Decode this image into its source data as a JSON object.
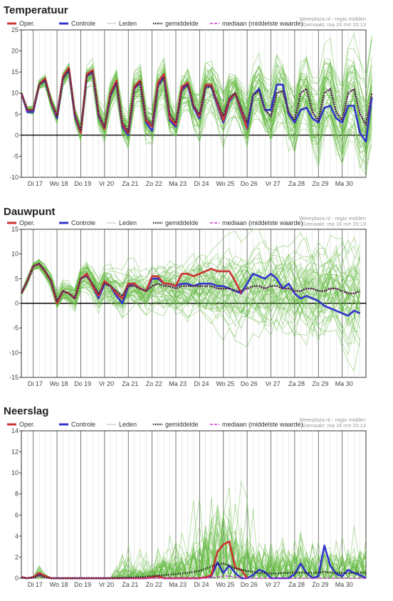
{
  "credit_line1": "Weerplaza.nl - regio midden",
  "credit_line2": "Gemaakt: ma 16 mrt 20:13",
  "legend": {
    "oper": "Oper.",
    "controle": "Controle",
    "leden": "Leden",
    "gemiddelde": "gemiddelde",
    "mediaan": "mediaan (middelste waarde)"
  },
  "colors": {
    "oper": "#cc3333",
    "controle": "#3333cc",
    "leden": "#66bb44",
    "gemiddelde": "#222222",
    "mediaan": "#cc33cc"
  },
  "days": [
    "Di 17",
    "Wo 18",
    "Do 19",
    "Vr 20",
    "Za 21",
    "Zo 22",
    "Ma 23",
    "Di 24",
    "Wo 25",
    "Do 26",
    "Vr 27",
    "Za 28",
    "Zo 29",
    "Ma 30"
  ],
  "chart_data": [
    {
      "type": "line",
      "title": "Temperatuur",
      "ylim": [
        -10,
        25
      ],
      "yticks": [
        -10,
        -5,
        0,
        5,
        10,
        15,
        20,
        25
      ],
      "x_steps": 58,
      "series": [
        {
          "name": "Oper.",
          "values": [
            10,
            6,
            6,
            12,
            13.5,
            8,
            4.5,
            14,
            16,
            5,
            0.5,
            14.5,
            15.5,
            5,
            1.5,
            10,
            13,
            2.5,
            0.5,
            11.5,
            13,
            3.5,
            2,
            12.5,
            14.5,
            4,
            2.5,
            11.5,
            12.5,
            7,
            4.5,
            12,
            12,
            7.5,
            3.5,
            8.5,
            10,
            6,
            1.5
          ]
        },
        {
          "name": "Controle",
          "values": [
            10,
            5.5,
            5.5,
            12,
            13,
            8,
            4,
            13.5,
            15.5,
            4.5,
            0.5,
            14,
            15,
            4.5,
            1.5,
            9.5,
            12.5,
            2,
            0,
            11,
            12.5,
            3,
            1,
            12,
            14,
            3.5,
            2,
            11,
            12,
            6.5,
            4,
            11.5,
            11.5,
            7,
            3,
            8,
            10,
            5.5,
            1.5,
            9.5,
            11,
            6,
            6,
            12,
            12,
            5,
            3,
            6,
            6.5,
            4,
            3,
            6.5,
            7,
            4,
            3,
            7,
            7,
            0.5,
            -1.5,
            9
          ]
        },
        {
          "name": "gemiddelde",
          "values": [
            10,
            6,
            6,
            12,
            13,
            8,
            4.5,
            13.5,
            15.5,
            5,
            1,
            14,
            15,
            5,
            2,
            9.5,
            12.5,
            3,
            1,
            11,
            12.5,
            4,
            2.5,
            11.5,
            13.5,
            5,
            3,
            10.5,
            12,
            7,
            5,
            11.5,
            11.5,
            8,
            4.5,
            9,
            10,
            6.5,
            3,
            9.5,
            10.5,
            6,
            4.5,
            10,
            10.5,
            5.5,
            3.5,
            10,
            11,
            5.5,
            3.5,
            10,
            11,
            5.5,
            3.5,
            10,
            11,
            5,
            2.5,
            10
          ]
        },
        {
          "name": "mediaan (middelste waarde)",
          "values": [
            10,
            6,
            6,
            12,
            13,
            8,
            4.5,
            13.5,
            15.5,
            5,
            1,
            14,
            15,
            5,
            2,
            9.5,
            12.5,
            3,
            1,
            11,
            12.5,
            4,
            2.5,
            11.5,
            13.5,
            5,
            3,
            10.5,
            12,
            7,
            5,
            11.5,
            11.5,
            8,
            4.5,
            9,
            10,
            6.5,
            3,
            9.5,
            10.5,
            6,
            4.5,
            10,
            10.5,
            5.5,
            3.5,
            10,
            11,
            5.5,
            3.5,
            10,
            11,
            5.5,
            3.5,
            10,
            11,
            5,
            2.5,
            10
          ]
        }
      ]
    },
    {
      "type": "line",
      "title": "Dauwpunt",
      "ylim": [
        -15,
        15
      ],
      "yticks": [
        -15,
        -10,
        -5,
        0,
        5,
        10,
        15
      ],
      "x_steps": 58,
      "series": [
        {
          "name": "Oper.",
          "values": [
            2,
            4.5,
            7.5,
            8,
            6.5,
            4.5,
            0,
            2.5,
            2,
            1,
            5,
            6,
            3.5,
            1.5,
            4.5,
            3.5,
            2,
            1,
            4,
            4,
            3,
            2.5,
            5.5,
            5.5,
            4,
            4,
            3.5,
            6,
            6,
            5.5,
            6,
            6.5,
            7,
            6.5,
            6.5,
            6.5,
            4.5,
            2
          ]
        },
        {
          "name": "Controle",
          "values": [
            2,
            4.5,
            7.5,
            8,
            6.5,
            4.5,
            0,
            2.5,
            2,
            1,
            5,
            6,
            3.5,
            1,
            4,
            3.5,
            1.5,
            0,
            3.5,
            4,
            3,
            2.5,
            5,
            5,
            4,
            4,
            3.5,
            4,
            4,
            3.5,
            4,
            4,
            4,
            3.5,
            3.5,
            3,
            2.5,
            2,
            4,
            6,
            5.5,
            5,
            6,
            5,
            3,
            4,
            2,
            1,
            1.5,
            1,
            0.5,
            -0.5,
            -1,
            -1.5,
            -2,
            -2.5,
            -1.5,
            -2
          ]
        },
        {
          "name": "gemiddelde",
          "values": [
            2,
            4.5,
            7.5,
            8,
            6.5,
            4.5,
            0.5,
            2.5,
            2,
            1,
            5,
            5.5,
            4,
            2,
            4,
            3.5,
            2.5,
            1.5,
            3.5,
            3.5,
            3,
            2.5,
            3.5,
            4,
            3.5,
            3.5,
            3,
            3.5,
            3.5,
            3.5,
            3.5,
            3.5,
            3.5,
            3,
            3,
            3,
            2.5,
            2.5,
            3,
            3.5,
            3.5,
            3,
            3.5,
            3.5,
            3,
            3,
            2.5,
            2.5,
            3,
            3,
            2.5,
            2.5,
            3,
            3,
            2.5,
            2,
            2,
            2.5
          ]
        },
        {
          "name": "mediaan (middelste waarde)",
          "values": [
            2,
            4.5,
            7.5,
            8,
            6.5,
            4.5,
            0.5,
            2.5,
            2,
            1,
            5,
            5.5,
            4,
            2,
            4,
            3.5,
            2.5,
            1.5,
            3.5,
            3.5,
            3,
            2.5,
            3.5,
            4,
            3.5,
            3.5,
            3,
            3.5,
            3.5,
            3.5,
            3.5,
            3.5,
            3.5,
            3,
            3,
            3,
            2.5,
            2.5,
            3,
            3.5,
            3.5,
            3,
            3.5,
            3.5,
            3,
            3,
            2.5,
            2.5,
            3,
            3,
            2.5,
            2.5,
            3,
            3,
            2.5,
            2,
            2,
            2.5
          ]
        }
      ]
    },
    {
      "type": "line",
      "title": "Neerslag",
      "ylim": [
        0,
        14
      ],
      "yticks": [
        0,
        2,
        4,
        6,
        8,
        10,
        12,
        14
      ],
      "x_steps": 58,
      "series": [
        {
          "name": "Oper.",
          "values": [
            0.1,
            0,
            0.1,
            0.5,
            0.2,
            0,
            0,
            0,
            0,
            0,
            0,
            0,
            0,
            0,
            0,
            0,
            0,
            0,
            0,
            0,
            0,
            0,
            0.1,
            0.2,
            0,
            0,
            0,
            0,
            0,
            0,
            0,
            0.1,
            0.3,
            2.5,
            3.2,
            3.5,
            1,
            0.8,
            0
          ]
        },
        {
          "name": "Controle",
          "values": [
            0.1,
            0,
            0.1,
            0.4,
            0.2,
            0,
            0,
            0,
            0,
            0,
            0,
            0,
            0,
            0,
            0,
            0,
            0,
            0,
            0,
            0,
            0,
            0,
            0.1,
            0.2,
            0,
            0,
            0,
            0,
            0,
            0,
            0,
            0.1,
            0.2,
            1.5,
            0.5,
            1.2,
            0.5,
            0,
            0,
            0.3,
            0.8,
            0.6,
            0,
            0,
            0,
            0,
            0.4,
            1.4,
            0.5,
            0,
            0.2,
            3.1,
            1.2,
            0.4,
            0.2,
            0.8,
            0.5,
            0.3,
            0
          ]
        },
        {
          "name": "gemiddelde",
          "values": [
            0.05,
            0,
            0.05,
            0.3,
            0.1,
            0,
            0,
            0,
            0,
            0,
            0,
            0,
            0,
            0,
            0,
            0,
            0.02,
            0.05,
            0.05,
            0.1,
            0.1,
            0.15,
            0.2,
            0.25,
            0.3,
            0.35,
            0.4,
            0.45,
            0.5,
            0.6,
            0.7,
            0.9,
            1.1,
            1.3,
            1.4,
            1.2,
            0.9,
            0.8,
            0.7,
            0.6,
            0.5,
            0.5,
            0.45,
            0.45,
            0.5,
            0.5,
            0.55,
            0.55,
            0.5,
            0.5,
            0.55,
            0.6,
            0.55,
            0.5,
            0.5,
            0.5,
            0.5,
            0.55,
            0.5
          ]
        },
        {
          "name": "mediaan (middelste waarde)",
          "values": [
            0,
            0,
            0,
            0.2,
            0,
            0,
            0,
            0,
            0,
            0,
            0,
            0,
            0,
            0,
            0,
            0,
            0,
            0,
            0,
            0,
            0,
            0,
            0,
            0,
            0,
            0,
            0,
            0,
            0,
            0,
            0,
            0,
            0.05,
            0.1,
            0.2,
            0.2,
            0.1,
            0.1,
            0,
            0,
            0,
            0,
            0,
            0,
            0,
            0,
            0,
            0,
            0,
            0,
            0,
            0,
            0,
            0,
            0,
            0,
            0,
            0,
            0
          ]
        }
      ]
    }
  ]
}
